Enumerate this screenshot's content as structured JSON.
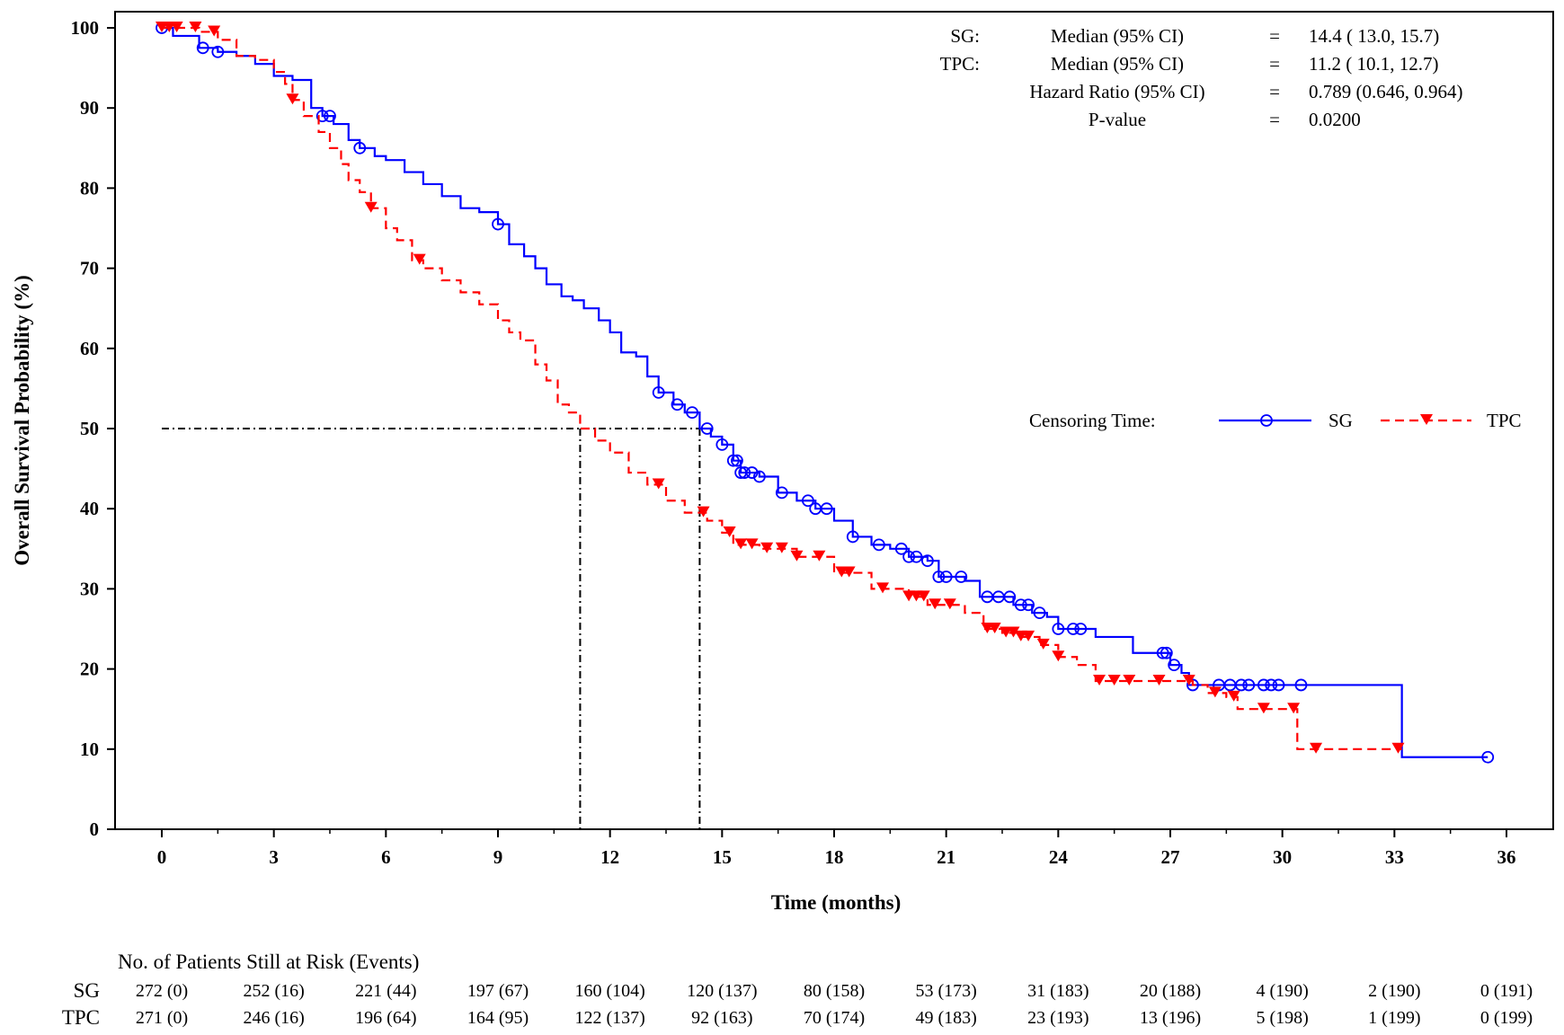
{
  "chart_data": {
    "type": "line",
    "subtype": "kaplan-meier step",
    "xlabel": "Time (months)",
    "ylabel": "Overall Survival Probability (%)",
    "xlim": [
      0,
      36
    ],
    "ylim": [
      0,
      100
    ],
    "x_ticks": [
      "0",
      "3",
      "6",
      "9",
      "12",
      "15",
      "18",
      "21",
      "24",
      "27",
      "30",
      "33",
      "36"
    ],
    "y_ticks": [
      "0",
      "10",
      "20",
      "30",
      "40",
      "50",
      "60",
      "70",
      "80",
      "90",
      "100"
    ],
    "grid": false,
    "series": [
      {
        "name": "SG",
        "color": "#0000ff",
        "line_style": "solid",
        "marker": "circle",
        "steps": [
          [
            0,
            100
          ],
          [
            0.3,
            99
          ],
          [
            1,
            97.5
          ],
          [
            1.5,
            97
          ],
          [
            2,
            96.5
          ],
          [
            2.5,
            95.5
          ],
          [
            3,
            94
          ],
          [
            3.5,
            93.5
          ],
          [
            4,
            90
          ],
          [
            4.3,
            89
          ],
          [
            4.6,
            88
          ],
          [
            5,
            86
          ],
          [
            5.3,
            85
          ],
          [
            5.7,
            84
          ],
          [
            6,
            83.5
          ],
          [
            6.5,
            82
          ],
          [
            7,
            80.5
          ],
          [
            7.5,
            79
          ],
          [
            8,
            77.5
          ],
          [
            8.5,
            77
          ],
          [
            9,
            75.5
          ],
          [
            9.3,
            73
          ],
          [
            9.7,
            71.5
          ],
          [
            10,
            70
          ],
          [
            10.3,
            68
          ],
          [
            10.7,
            66.5
          ],
          [
            11,
            66
          ],
          [
            11.3,
            65
          ],
          [
            11.7,
            63.5
          ],
          [
            12,
            62
          ],
          [
            12.3,
            59.5
          ],
          [
            12.7,
            59
          ],
          [
            13,
            56.5
          ],
          [
            13.3,
            54.5
          ],
          [
            13.7,
            53
          ],
          [
            14,
            52
          ],
          [
            14.4,
            50
          ],
          [
            14.7,
            49
          ],
          [
            15,
            48
          ],
          [
            15.3,
            46
          ],
          [
            15.5,
            44.5
          ],
          [
            16,
            44
          ],
          [
            16.5,
            42
          ],
          [
            17,
            41
          ],
          [
            17.5,
            40
          ],
          [
            18,
            38.5
          ],
          [
            18.5,
            36.5
          ],
          [
            19,
            35.5
          ],
          [
            19.5,
            35
          ],
          [
            20,
            34
          ],
          [
            20.5,
            33.5
          ],
          [
            20.8,
            31.5
          ],
          [
            21.5,
            31
          ],
          [
            21.9,
            29
          ],
          [
            22.8,
            28
          ],
          [
            23.3,
            27
          ],
          [
            23.7,
            26.5
          ],
          [
            24,
            25
          ],
          [
            25,
            24
          ],
          [
            26,
            22
          ],
          [
            27,
            20.5
          ],
          [
            27.3,
            19.5
          ],
          [
            27.5,
            18
          ],
          [
            33.2,
            9
          ]
        ],
        "end": 35.5,
        "censored": [
          0,
          1.1,
          1.5,
          4.3,
          4.5,
          5.3,
          9,
          13.3,
          13.8,
          14.2,
          14.6,
          15,
          15.3,
          15.4,
          15.5,
          15.6,
          15.8,
          16,
          16.6,
          17.3,
          17.5,
          17.8,
          18.5,
          19.2,
          19.8,
          20,
          20.2,
          20.5,
          20.8,
          21,
          21.4,
          22.1,
          22.4,
          22.7,
          23,
          23.2,
          23.5,
          24,
          24.4,
          24.6,
          26.8,
          26.9,
          27.1,
          27.6,
          28.3,
          28.6,
          28.9,
          29.1,
          29.5,
          29.7,
          29.9,
          30.5,
          35.5
        ]
      },
      {
        "name": "TPC",
        "color": "#ff0000",
        "line_style": "dashed",
        "marker": "triangle-down",
        "steps": [
          [
            0,
            100
          ],
          [
            1,
            99.5
          ],
          [
            1.5,
            98.5
          ],
          [
            2,
            96.5
          ],
          [
            2.5,
            96
          ],
          [
            3,
            94.5
          ],
          [
            3.3,
            93
          ],
          [
            3.5,
            91
          ],
          [
            3.8,
            89
          ],
          [
            4.2,
            87
          ],
          [
            4.5,
            85
          ],
          [
            4.8,
            83
          ],
          [
            5,
            81
          ],
          [
            5.3,
            79.5
          ],
          [
            5.6,
            77.5
          ],
          [
            6,
            75
          ],
          [
            6.3,
            73.5
          ],
          [
            6.7,
            71
          ],
          [
            7,
            70
          ],
          [
            7.5,
            68.5
          ],
          [
            8,
            67
          ],
          [
            8.5,
            65.5
          ],
          [
            9,
            63.5
          ],
          [
            9.3,
            62
          ],
          [
            9.6,
            61
          ],
          [
            10,
            58
          ],
          [
            10.3,
            56
          ],
          [
            10.6,
            53
          ],
          [
            10.9,
            52
          ],
          [
            11.2,
            50
          ],
          [
            11.6,
            48.5
          ],
          [
            12,
            47
          ],
          [
            12.5,
            44.5
          ],
          [
            13,
            43
          ],
          [
            13.5,
            41
          ],
          [
            14,
            39.5
          ],
          [
            14.6,
            38.5
          ],
          [
            15,
            37
          ],
          [
            15.3,
            35.5
          ],
          [
            16,
            35
          ],
          [
            17,
            34
          ],
          [
            18,
            32
          ],
          [
            19,
            30
          ],
          [
            20,
            29
          ],
          [
            20.5,
            28
          ],
          [
            21.5,
            27
          ],
          [
            22,
            25
          ],
          [
            22.5,
            24.5
          ],
          [
            23,
            24
          ],
          [
            23.5,
            23
          ],
          [
            24,
            21.5
          ],
          [
            24.5,
            20.5
          ],
          [
            25,
            18.5
          ],
          [
            27.6,
            18
          ],
          [
            28,
            17
          ],
          [
            28.5,
            16.5
          ],
          [
            28.8,
            15
          ],
          [
            30.4,
            10
          ]
        ],
        "end": 33.2,
        "censored": [
          0,
          0.2,
          0.4,
          0.9,
          1.4,
          3.5,
          5.6,
          6.9,
          13.3,
          14.5,
          15.2,
          15.5,
          15.8,
          16.2,
          16.6,
          17,
          17.6,
          18.2,
          18.4,
          19.3,
          20,
          20.2,
          20.4,
          20.7,
          21.1,
          22.1,
          22.3,
          22.6,
          22.8,
          23,
          23.2,
          23.6,
          24,
          25.1,
          25.5,
          25.9,
          26.7,
          27.5,
          28.2,
          28.7,
          29.5,
          30.3,
          30.9,
          33.1
        ]
      }
    ],
    "median_reference": {
      "y": 50,
      "x": [
        11.2,
        14.4
      ]
    },
    "stats": [
      {
        "group": "SG:",
        "label": "Median (95% CI)",
        "eq": "=",
        "value": "14.4 ( 13.0, 15.7)"
      },
      {
        "group": "TPC:",
        "label": "Median (95% CI)",
        "eq": "=",
        "value": "11.2 ( 10.1, 12.7)"
      },
      {
        "group": "",
        "label": "Hazard Ratio (95% CI)",
        "eq": "=",
        "value": "0.789 (0.646, 0.964)"
      },
      {
        "group": "",
        "label": "P-value",
        "eq": "=",
        "value": "0.0200"
      }
    ],
    "legend": {
      "title": "Censoring Time:",
      "placement": "right",
      "entries": [
        "SG",
        "TPC"
      ]
    },
    "risk_table": {
      "title": "No. of Patients Still at Risk (Events)",
      "rows": [
        {
          "label": "SG",
          "values": [
            "272 (0)",
            "252 (16)",
            "221 (44)",
            "197 (67)",
            "160 (104)",
            "120 (137)",
            "80 (158)",
            "53 (173)",
            "31 (183)",
            "20 (188)",
            "4 (190)",
            "2 (190)",
            "0 (191)"
          ]
        },
        {
          "label": "TPC",
          "values": [
            "271 (0)",
            "246 (16)",
            "196 (64)",
            "164 (95)",
            "122 (137)",
            "92 (163)",
            "70 (174)",
            "49 (183)",
            "23 (193)",
            "13 (196)",
            "5 (198)",
            "1 (199)",
            "0 (199)"
          ]
        }
      ]
    }
  }
}
